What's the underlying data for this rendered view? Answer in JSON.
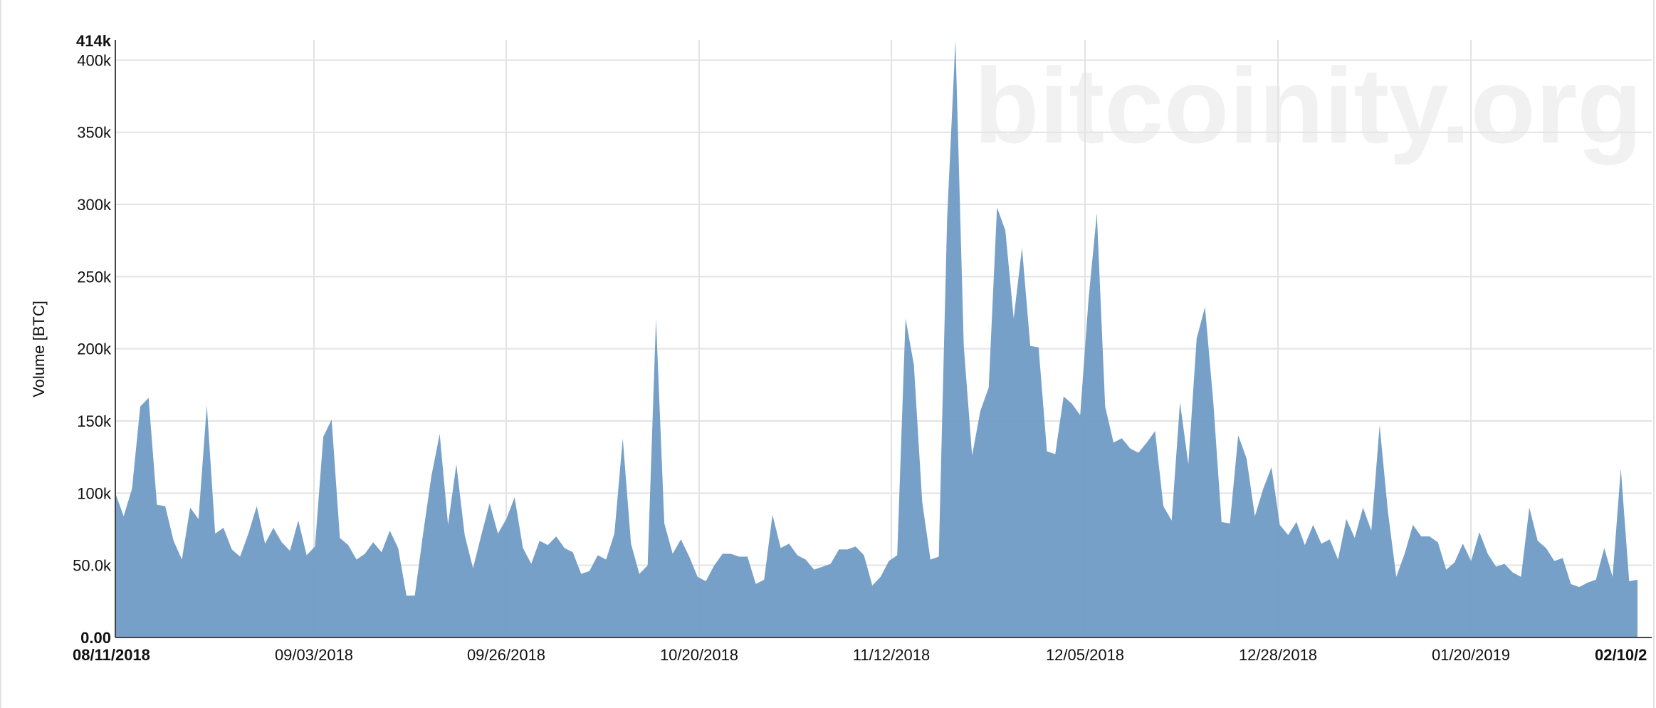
{
  "watermark": "bitcoinity.org",
  "chart_data": {
    "type": "area",
    "title": "",
    "xlabel": "",
    "ylabel": "Volume [BTC]",
    "ylim": [
      0,
      414000
    ],
    "y_max_label": "414k",
    "y_ticks": [
      {
        "value": 0,
        "label": "0.00"
      },
      {
        "value": 50000,
        "label": "50.0k"
      },
      {
        "value": 100000,
        "label": "100k"
      },
      {
        "value": 150000,
        "label": "150k"
      },
      {
        "value": 200000,
        "label": "200k"
      },
      {
        "value": 250000,
        "label": "250k"
      },
      {
        "value": 300000,
        "label": "300k"
      },
      {
        "value": 350000,
        "label": "350k"
      },
      {
        "value": 400000,
        "label": "400k"
      }
    ],
    "x_ticks": [
      "08/11/2018",
      "09/03/2018",
      "09/26/2018",
      "10/20/2018",
      "11/12/2018",
      "12/05/2018",
      "12/28/2018",
      "01/20/2019",
      "02/10/2"
    ],
    "grid": true,
    "fill_color": "#6f9bc5",
    "series": [
      {
        "values": [
          100,
          84,
          103,
          160,
          166,
          92,
          91,
          67,
          54,
          90,
          82,
          161,
          72,
          76,
          61,
          56,
          72,
          91,
          65,
          76,
          66,
          60,
          81,
          57,
          63,
          139,
          151,
          69,
          64,
          54,
          58,
          66,
          59,
          74,
          62,
          29,
          29,
          72,
          112,
          141,
          78,
          120,
          71,
          48,
          71,
          93,
          72,
          82,
          97,
          62,
          51,
          67,
          64,
          70,
          62,
          59,
          44,
          46,
          57,
          54,
          72,
          138,
          65,
          44,
          50,
          221,
          79,
          58,
          68,
          56,
          42,
          39,
          50,
          58,
          58,
          56,
          56,
          37,
          40,
          85,
          62,
          65,
          57,
          54,
          47,
          49,
          51,
          61,
          61,
          63,
          57,
          36,
          42,
          53,
          57,
          221,
          189,
          94,
          54,
          56,
          290,
          414,
          202,
          126,
          157,
          173,
          298,
          282,
          221,
          270,
          202,
          201,
          129,
          127,
          167,
          162,
          154,
          234,
          294,
          160,
          135,
          138,
          131,
          128,
          135,
          143,
          91,
          81,
          163,
          120,
          207,
          229,
          163,
          80,
          79,
          140,
          124,
          84,
          103,
          118,
          78,
          71,
          80,
          64,
          78,
          65,
          68,
          54,
          82,
          69,
          90,
          74,
          147,
          87,
          42,
          58,
          78,
          70,
          70,
          66,
          47,
          52,
          65,
          53,
          73,
          58,
          49,
          51,
          45,
          42,
          90,
          67,
          62,
          53,
          55,
          37,
          35,
          38,
          40,
          62,
          42,
          117,
          39,
          40
        ],
        "unit": "k BTC"
      }
    ]
  }
}
